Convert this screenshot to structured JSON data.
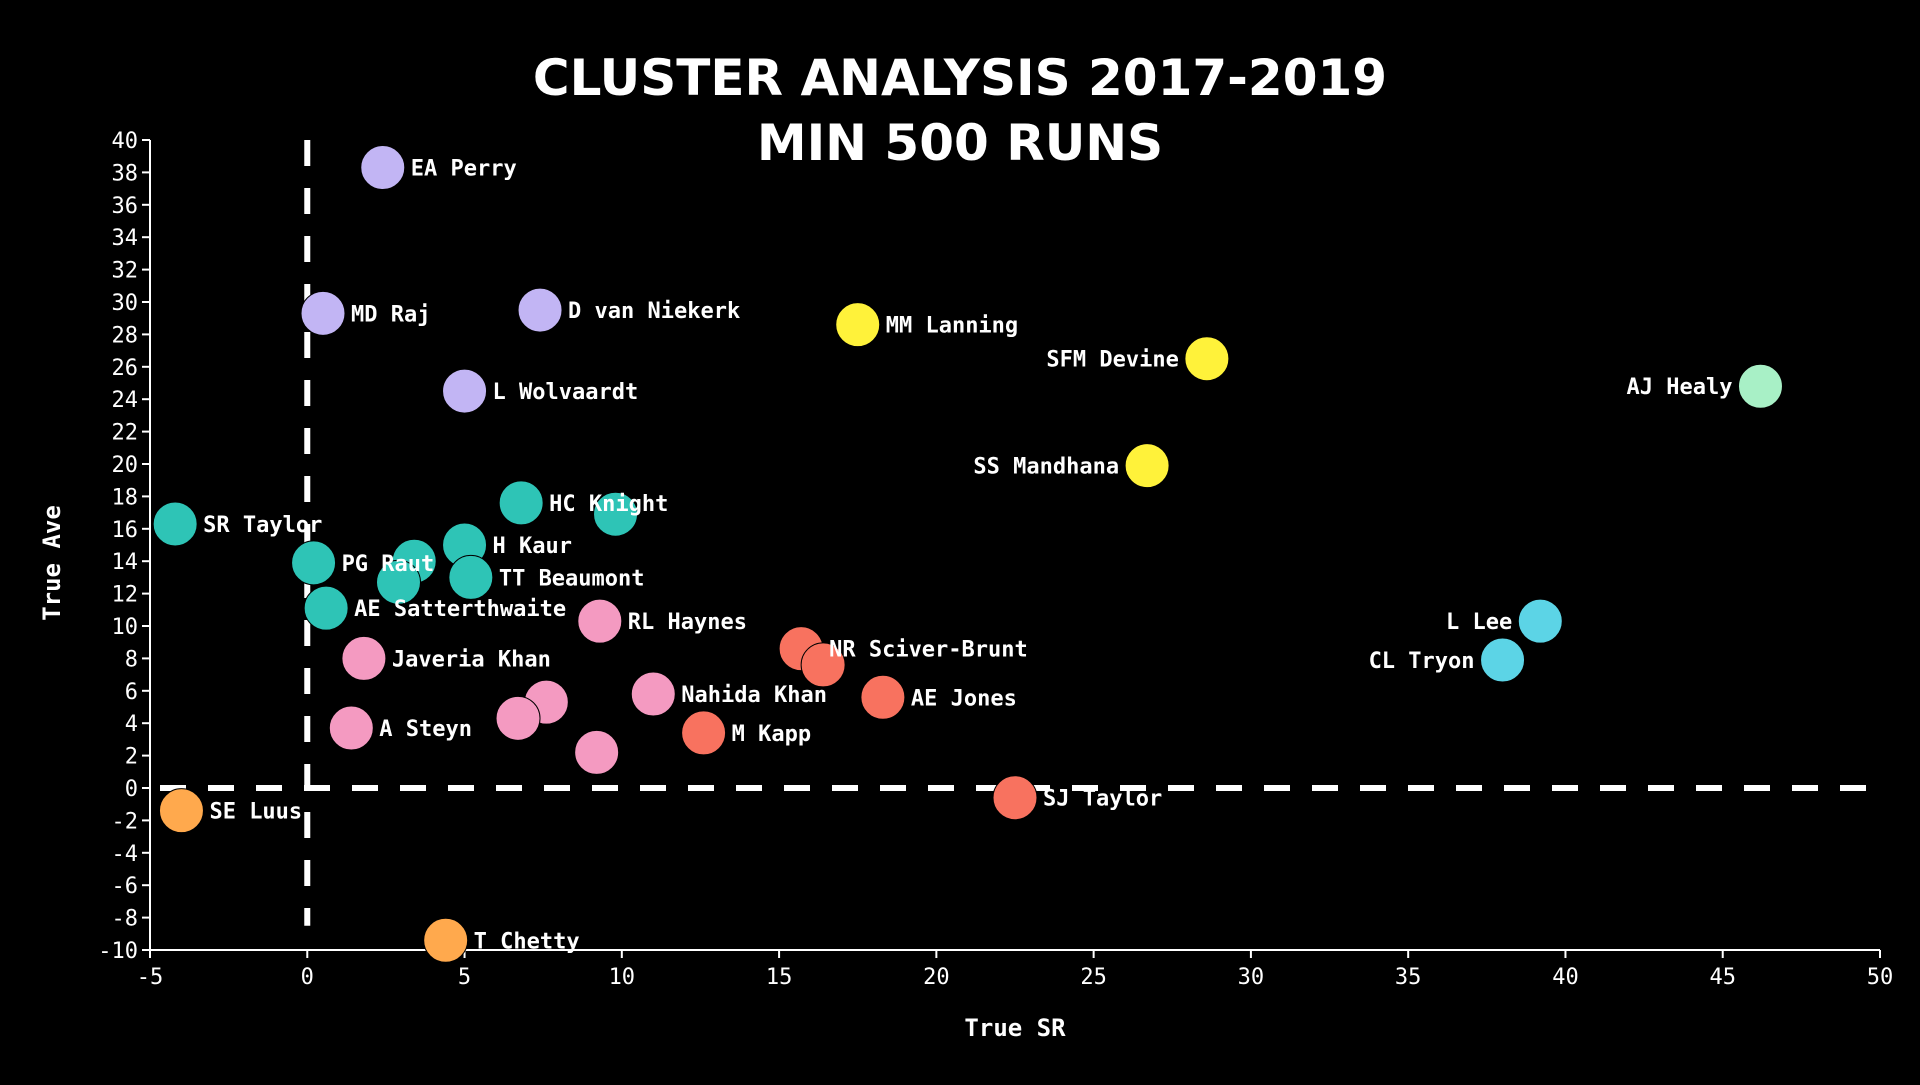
{
  "chart_data": {
    "type": "scatter",
    "title": "CLUSTER ANALYSIS 2017-2019",
    "subtitle": "MIN 500 RUNS",
    "xlabel": "True SR",
    "ylabel": "True Ave",
    "xlim": [
      -5,
      50
    ],
    "ylim": [
      -10,
      40
    ],
    "xticks": [
      -5,
      0,
      5,
      10,
      15,
      20,
      25,
      30,
      35,
      40,
      45,
      50
    ],
    "yticks": [
      -10,
      -8,
      -6,
      -4,
      -2,
      0,
      2,
      4,
      6,
      8,
      10,
      12,
      14,
      16,
      18,
      20,
      22,
      24,
      26,
      28,
      30,
      32,
      34,
      36,
      38,
      40
    ],
    "reference_lines": {
      "x": 0,
      "y": 0,
      "style": "dashed"
    },
    "cluster_colors": {
      "purple": "#c2b5f4",
      "teal": "#2ec4b6",
      "pink": "#f49ac1",
      "red": "#f8725f",
      "yellow": "#fff23a",
      "mint": "#a8f0c6",
      "cyan": "#5cd4e6",
      "orange": "#ffa94d"
    },
    "points": [
      {
        "label": "EA Perry",
        "x": 2.4,
        "y": 38.3,
        "cluster": "purple",
        "label_side": "right"
      },
      {
        "label": "MD Raj",
        "x": 0.5,
        "y": 29.3,
        "cluster": "purple",
        "label_side": "right"
      },
      {
        "label": "D van Niekerk",
        "x": 7.4,
        "y": 29.5,
        "cluster": "purple",
        "label_side": "right"
      },
      {
        "label": "L Wolvaardt",
        "x": 5.0,
        "y": 24.5,
        "cluster": "purple",
        "label_side": "right"
      },
      {
        "label": "MM Lanning",
        "x": 17.5,
        "y": 28.6,
        "cluster": "yellow",
        "label_side": "right"
      },
      {
        "label": "SFM Devine",
        "x": 28.6,
        "y": 26.5,
        "cluster": "yellow",
        "label_side": "left"
      },
      {
        "label": "SS Mandhana",
        "x": 26.7,
        "y": 19.9,
        "cluster": "yellow",
        "label_side": "left"
      },
      {
        "label": "AJ Healy",
        "x": 46.2,
        "y": 24.8,
        "cluster": "mint",
        "label_side": "left"
      },
      {
        "label": "L Lee",
        "x": 39.2,
        "y": 10.3,
        "cluster": "cyan",
        "label_side": "left"
      },
      {
        "label": "CL Tryon",
        "x": 38.0,
        "y": 7.9,
        "cluster": "cyan",
        "label_side": "left"
      },
      {
        "label": "SR Taylor",
        "x": -4.2,
        "y": 16.3,
        "cluster": "teal",
        "label_side": "right"
      },
      {
        "label": "HC Knight",
        "x": 6.8,
        "y": 17.6,
        "cluster": "teal",
        "label_side": "right"
      },
      {
        "label": "",
        "x": 9.8,
        "y": 16.9,
        "cluster": "teal",
        "label_side": "right"
      },
      {
        "label": "H Kaur",
        "x": 5.0,
        "y": 15.0,
        "cluster": "teal",
        "label_side": "right"
      },
      {
        "label": "PG Raut",
        "x": 0.2,
        "y": 13.9,
        "cluster": "teal",
        "label_side": "right"
      },
      {
        "label": "",
        "x": 3.4,
        "y": 14.0,
        "cluster": "teal",
        "label_side": "right"
      },
      {
        "label": "",
        "x": 2.9,
        "y": 12.7,
        "cluster": "teal",
        "label_side": "right"
      },
      {
        "label": "TT Beaumont",
        "x": 5.2,
        "y": 13.0,
        "cluster": "teal",
        "label_side": "right"
      },
      {
        "label": "AE Satterthwaite",
        "x": 0.6,
        "y": 11.1,
        "cluster": "teal",
        "label_side": "right"
      },
      {
        "label": "RL Haynes",
        "x": 9.3,
        "y": 10.3,
        "cluster": "pink",
        "label_side": "right"
      },
      {
        "label": "Javeria Khan",
        "x": 1.8,
        "y": 8.0,
        "cluster": "pink",
        "label_side": "right"
      },
      {
        "label": "Nahida Khan",
        "x": 11.0,
        "y": 5.8,
        "cluster": "pink",
        "label_side": "right"
      },
      {
        "label": "",
        "x": 7.6,
        "y": 5.3,
        "cluster": "pink",
        "label_side": "right"
      },
      {
        "label": "",
        "x": 6.7,
        "y": 4.3,
        "cluster": "pink",
        "label_side": "right"
      },
      {
        "label": "A Steyn",
        "x": 1.4,
        "y": 3.7,
        "cluster": "pink",
        "label_side": "right"
      },
      {
        "label": "",
        "x": 9.2,
        "y": 2.2,
        "cluster": "pink",
        "label_side": "right"
      },
      {
        "label": "NR Sciver-Brunt",
        "x": 15.7,
        "y": 8.6,
        "cluster": "red",
        "label_side": "right"
      },
      {
        "label": "",
        "x": 16.4,
        "y": 7.6,
        "cluster": "red",
        "label_side": "right"
      },
      {
        "label": "AE Jones",
        "x": 18.3,
        "y": 5.6,
        "cluster": "red",
        "label_side": "right"
      },
      {
        "label": "M Kapp",
        "x": 12.6,
        "y": 3.4,
        "cluster": "red",
        "label_side": "right"
      },
      {
        "label": "SJ Taylor",
        "x": 22.5,
        "y": -0.6,
        "cluster": "red",
        "label_side": "right"
      },
      {
        "label": "SE Luus",
        "x": -4.0,
        "y": -1.4,
        "cluster": "orange",
        "label_side": "right"
      },
      {
        "label": "T Chetty",
        "x": 4.4,
        "y": -9.4,
        "cluster": "orange",
        "label_side": "right"
      }
    ]
  }
}
